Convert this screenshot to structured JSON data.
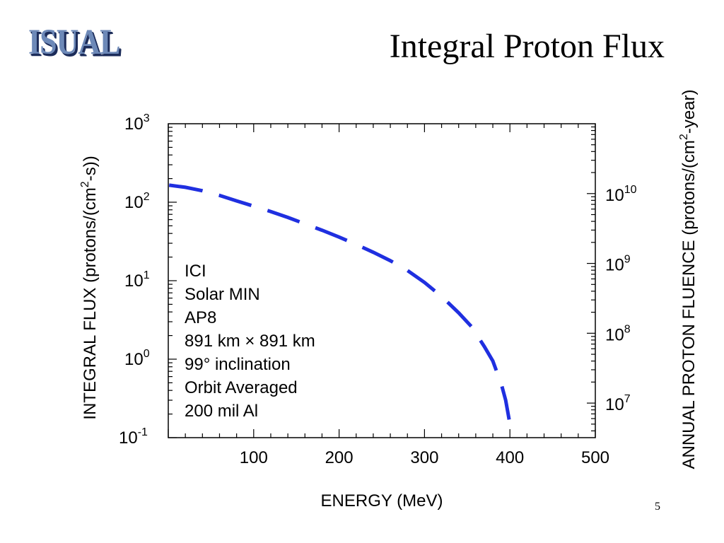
{
  "logo": {
    "text": "ISUAL"
  },
  "slide": {
    "title": "Integral Proton Flux",
    "page_number": "5"
  },
  "chart_data": {
    "type": "line",
    "xlabel": "ENERGY (MeV)",
    "ylabel": "INTEGRAL FLUX (protons/(cm2-s))",
    "ylabel_parts": {
      "before": "INTEGRAL FLUX (protons/(cm",
      "sup": "2",
      "after": "-s))"
    },
    "y2label": "ANNUAL PROTON FLUENCE (protons/(cm2-year)",
    "y2label_parts": {
      "before": "ANNUAL PROTON FLUENCE (protons/(cm",
      "sup": "2",
      "after": "-year)"
    },
    "xlim": [
      0,
      500
    ],
    "ylim": [
      0.1,
      1000
    ],
    "y2lim": [
      3200000.0,
      100000000000.0
    ],
    "yscale": "log",
    "x_ticks": [
      {
        "value": 100,
        "label": "100"
      },
      {
        "value": 200,
        "label": "200"
      },
      {
        "value": 300,
        "label": "300"
      },
      {
        "value": 400,
        "label": "400"
      },
      {
        "value": 500,
        "label": "500"
      }
    ],
    "y_ticks": [
      {
        "value": 1000,
        "base": "10",
        "exp": "3"
      },
      {
        "value": 100,
        "base": "10",
        "exp": "2"
      },
      {
        "value": 10,
        "base": "10",
        "exp": "1"
      },
      {
        "value": 1,
        "base": "10",
        "exp": "0"
      },
      {
        "value": 0.1,
        "base": "10",
        "exp": "-1"
      }
    ],
    "y2_ticks": [
      {
        "value": 10000000000.0,
        "base": "10",
        "exp": "10"
      },
      {
        "value": 1000000000.0,
        "base": "10",
        "exp": "9"
      },
      {
        "value": 100000000.0,
        "base": "10",
        "exp": "8"
      },
      {
        "value": 10000000.0,
        "base": "10",
        "exp": "7"
      }
    ],
    "annotation": [
      "ICI",
      "Solar MIN",
      "AP8",
      "891 km × 891 km",
      "99° inclination",
      "Orbit Averaged",
      "200 mil Al"
    ],
    "grid": false,
    "line_color": "#1f2fe0",
    "series": [
      {
        "style": "dashed",
        "x": [
          1,
          20,
          40,
          60,
          80,
          100,
          120,
          140,
          160,
          180,
          200,
          220,
          240,
          260,
          280,
          300,
          320,
          340,
          355,
          370,
          380,
          390,
          395,
          400
        ],
        "y": [
          165,
          155,
          140,
          122,
          104,
          89,
          76,
          64,
          53,
          44,
          36,
          29,
          23,
          18,
          13.5,
          9.5,
          6.3,
          3.9,
          2.6,
          1.45,
          0.95,
          0.48,
          0.3,
          0.15
        ]
      }
    ]
  }
}
